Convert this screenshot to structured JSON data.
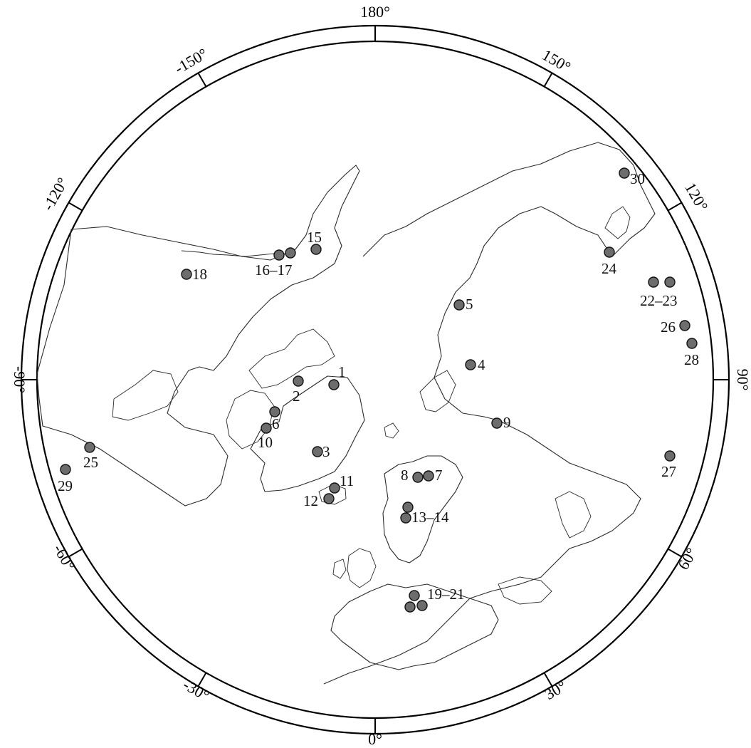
{
  "longitude_labels": [
    "180°",
    "150°",
    "120°",
    "90°",
    "60°",
    "30°",
    "0°",
    "-30°",
    "-60°",
    "-90°",
    "-120°",
    "-150°"
  ],
  "sites": [
    {
      "id": "1",
      "label": "1"
    },
    {
      "id": "2",
      "label": "2"
    },
    {
      "id": "3",
      "label": "3"
    },
    {
      "id": "4",
      "label": "4"
    },
    {
      "id": "5",
      "label": "5"
    },
    {
      "id": "6",
      "label": "6"
    },
    {
      "id": "7",
      "label": "7"
    },
    {
      "id": "8",
      "label": "8"
    },
    {
      "id": "9",
      "label": "9"
    },
    {
      "id": "10",
      "label": "10"
    },
    {
      "id": "11",
      "label": "11"
    },
    {
      "id": "12",
      "label": "12"
    },
    {
      "id": "13-14",
      "label": "13–14"
    },
    {
      "id": "15",
      "label": "15"
    },
    {
      "id": "16-17",
      "label": "16–17"
    },
    {
      "id": "18",
      "label": "18"
    },
    {
      "id": "19-21",
      "label": "19–21"
    },
    {
      "id": "22-23",
      "label": "22–23"
    },
    {
      "id": "24",
      "label": "24"
    },
    {
      "id": "25",
      "label": "25"
    },
    {
      "id": "26",
      "label": "26"
    },
    {
      "id": "27",
      "label": "27"
    },
    {
      "id": "28",
      "label": "28"
    },
    {
      "id": "29",
      "label": "29"
    },
    {
      "id": "30",
      "label": "30"
    }
  ],
  "colors": {
    "dot_fill": "#6d6d6d",
    "dot_stroke": "#111111",
    "coastline": "#2a2a2a"
  }
}
